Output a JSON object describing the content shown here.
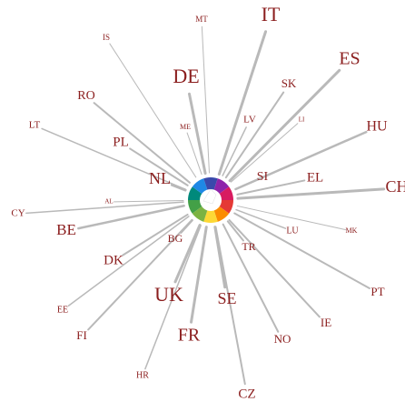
{
  "nodes": [
    {
      "label": "MT"
    },
    {
      "label": "IT"
    },
    {
      "label": "IS"
    },
    {
      "label": "ES"
    },
    {
      "label": "DE"
    },
    {
      "label": "SK"
    },
    {
      "label": "RO"
    },
    {
      "label": "ME"
    },
    {
      "label": "LV"
    },
    {
      "label": "LI"
    },
    {
      "label": "HU"
    },
    {
      "label": "LT"
    },
    {
      "label": "PL"
    },
    {
      "label": "NL"
    },
    {
      "label": "SI"
    },
    {
      "label": "EL"
    },
    {
      "label": "CH"
    },
    {
      "label": "CY"
    },
    {
      "label": "AL"
    },
    {
      "label": "LU"
    },
    {
      "label": "MK"
    },
    {
      "label": "BE"
    },
    {
      "label": "BG"
    },
    {
      "label": "TR"
    },
    {
      "label": "DK"
    },
    {
      "label": "PT"
    },
    {
      "label": "UK"
    },
    {
      "label": "SE"
    },
    {
      "label": "EE"
    },
    {
      "label": "IE"
    },
    {
      "label": "FI"
    },
    {
      "label": "FR"
    },
    {
      "label": "NO"
    },
    {
      "label": "HR"
    },
    {
      "label": "CZ"
    }
  ]
}
